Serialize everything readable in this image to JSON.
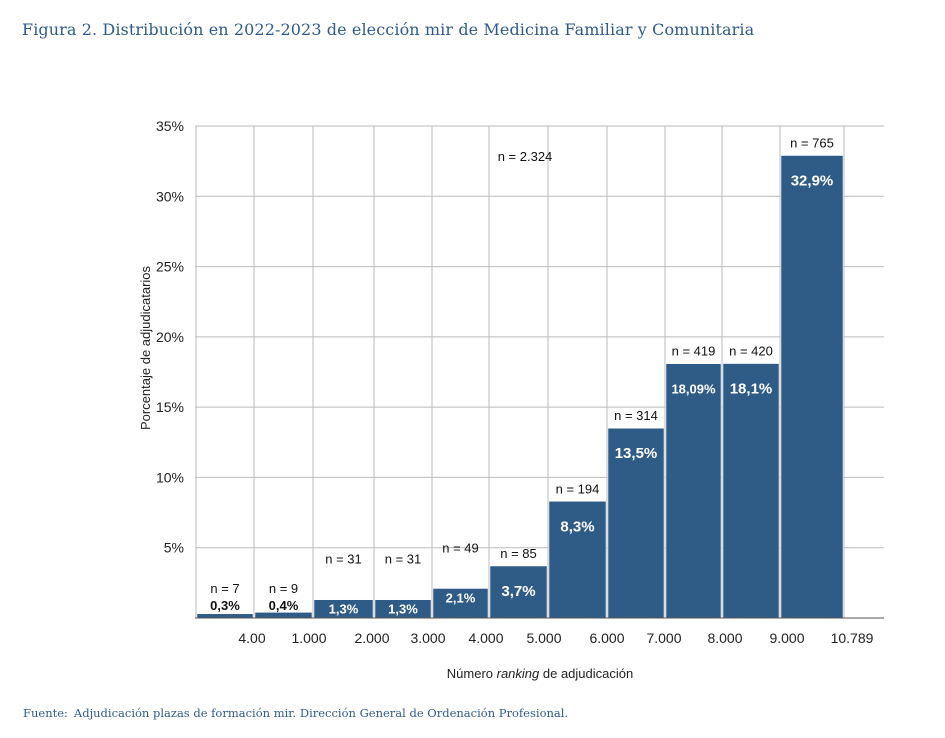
{
  "figure": {
    "title": "Figura 2. Distribución en 2022-2023 de elección mir de Medicina Familiar y Comunitaria",
    "source_label": "Fuente:",
    "source_text": "Adjudicación plazas de formación mir. Dirección General de Ordenación Profesional."
  },
  "colors": {
    "bar": "#2f5b87",
    "grid": "#bbbbbb",
    "title": "#2f5b8c"
  },
  "chart_data": {
    "type": "bar",
    "title": "",
    "xlabel_pre": "Número ",
    "xlabel_italic": "ranking",
    "xlabel_post": " de adjudicación",
    "ylabel": "Porcentaje de adjudicatarios",
    "ylim": [
      0,
      35
    ],
    "y_ticks": [
      "35%",
      "30%",
      "25%",
      "20%",
      "15%",
      "10%",
      "5%"
    ],
    "y_tick_values": [
      35,
      30,
      25,
      20,
      15,
      10,
      5
    ],
    "x_tick_labels": [
      "4.00",
      "1.000",
      "2.000",
      "3.000",
      "4.000",
      "5.000",
      "6.000",
      "7.000",
      "8.000",
      "9.000",
      "10.789"
    ],
    "grid": true,
    "series": [
      {
        "values": [
          0.3,
          0.4,
          1.3,
          1.3,
          2.1,
          3.7,
          8.3,
          13.5,
          18.09,
          18.1,
          32.9
        ],
        "value_labels": [
          "0,3%",
          "0,4%",
          "1,3%",
          "1,3%",
          "2,1%",
          "3,7%",
          "8,3%",
          "13,5%",
          "18,09%",
          "18,1%",
          "32,9%"
        ],
        "n_labels": [
          "n = 7",
          "n = 9",
          "n = 31",
          "n = 31",
          "n = 49",
          "n = 85",
          "n = 194",
          "n = 314",
          "n = 419",
          "n = 420",
          "n = 765"
        ]
      }
    ],
    "annotations": [
      "n = 2.324"
    ]
  }
}
